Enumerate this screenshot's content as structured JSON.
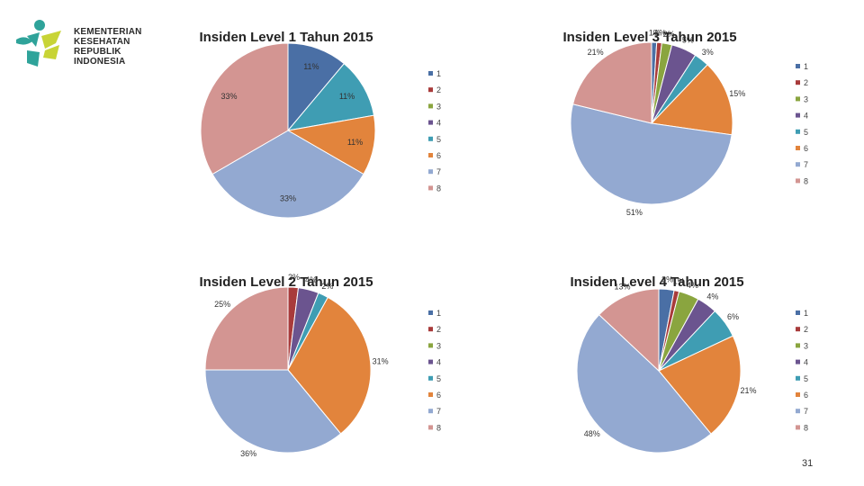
{
  "logo": {
    "lines": [
      "KEMENTERIAN",
      "KESEHATAN",
      "REPUBLIK",
      "INDONESIA"
    ]
  },
  "page_number": "31",
  "colors": [
    "#4a6fa5",
    "#a83b3b",
    "#8aa53f",
    "#6b548f",
    "#3f9db3",
    "#e2843c",
    "#93a9d1",
    "#d39592"
  ],
  "chart_data": [
    {
      "type": "pie",
      "title": "Insiden Level 1 Tahun 2015",
      "categories": [
        "1",
        "2",
        "3",
        "4",
        "5",
        "6",
        "7",
        "8"
      ],
      "values": [
        11,
        0,
        0,
        0,
        11,
        11,
        33,
        33
      ],
      "labels": [
        "11%",
        "",
        "",
        "",
        "11%",
        "11%",
        "33%",
        "33%"
      ],
      "legend": "right"
    },
    {
      "type": "pie",
      "title": "Insiden Level 3 Tahun 2015",
      "categories": [
        "1",
        "2",
        "3",
        "4",
        "5",
        "6",
        "7",
        "8"
      ],
      "values": [
        1,
        1,
        2,
        5,
        3,
        15,
        51,
        21
      ],
      "labels": [
        "1%",
        "1%",
        "2%",
        "5%",
        "3%",
        "15%",
        "51%",
        "21%"
      ],
      "legend": "right"
    },
    {
      "type": "pie",
      "title": "Insiden Level 2 Tahun 2015",
      "categories": [
        "1",
        "2",
        "3",
        "4",
        "5",
        "6",
        "7",
        "8"
      ],
      "values": [
        0,
        2,
        0,
        4,
        2,
        31,
        36,
        25
      ],
      "labels": [
        "",
        "2%",
        "",
        "4%",
        "2%",
        "31%",
        "36%",
        "25%"
      ],
      "legend": "right"
    },
    {
      "type": "pie",
      "title": "Insiden Level 4 Tahun 2015",
      "categories": [
        "1",
        "2",
        "3",
        "4",
        "5",
        "6",
        "7",
        "8"
      ],
      "values": [
        3,
        1,
        4,
        4,
        6,
        21,
        48,
        13
      ],
      "labels": [
        "3%",
        "1%",
        "4%",
        "4%",
        "6%",
        "21%",
        "48%",
        "13%"
      ],
      "legend": "right"
    }
  ]
}
